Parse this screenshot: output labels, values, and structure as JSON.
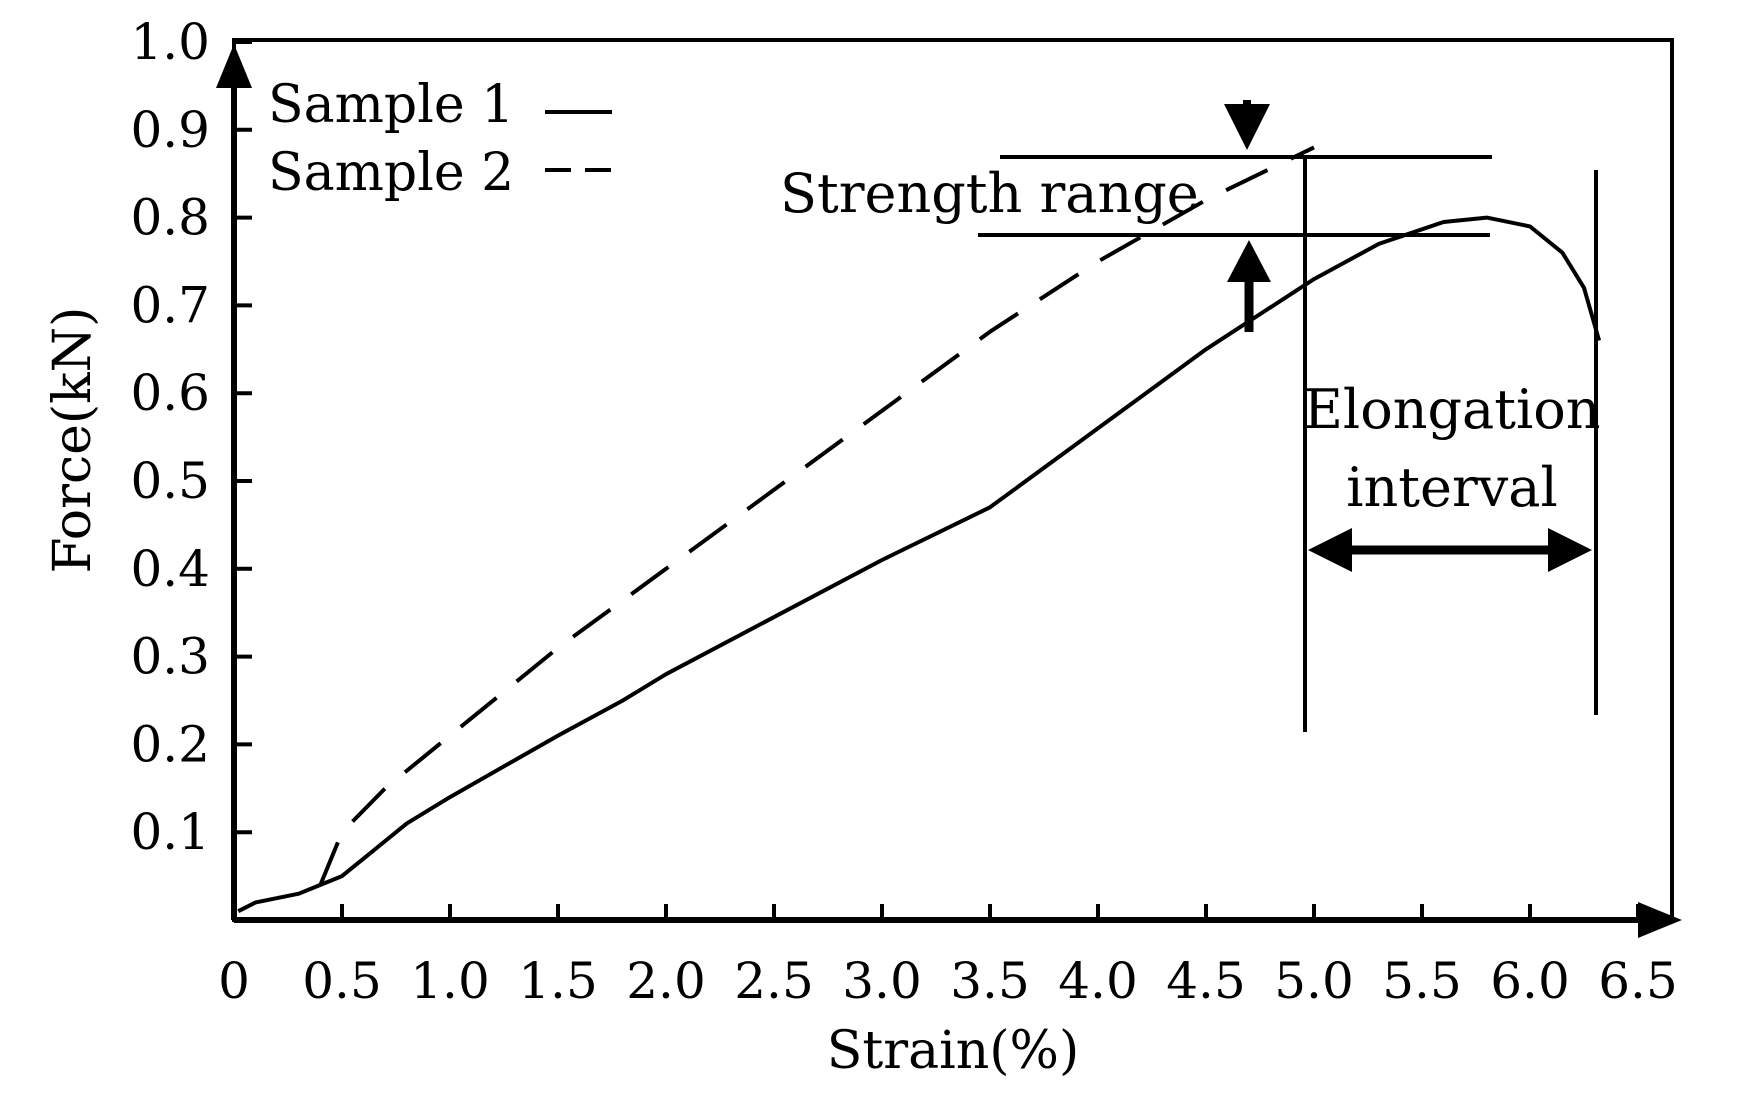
{
  "chart_data": {
    "type": "line",
    "title": "",
    "xlabel": "Strain(%)",
    "ylabel": "Force(kN)",
    "xlim": [
      0,
      6.6
    ],
    "ylim": [
      0,
      1.0
    ],
    "x_ticks": [
      0,
      0.5,
      1.0,
      1.5,
      2.0,
      2.5,
      3.0,
      3.5,
      4.0,
      4.5,
      5.0,
      5.5,
      6.0,
      6.5
    ],
    "x_tick_labels": [
      "0",
      "0.5",
      "1.0",
      "1.5",
      "2.0",
      "2.5",
      "3.0",
      "3.5",
      "4.0",
      "4.5",
      "5.0",
      "5.5",
      "6.0",
      "6.5"
    ],
    "y_ticks": [
      0.1,
      0.2,
      0.3,
      0.4,
      0.5,
      0.6,
      0.7,
      0.8,
      0.9,
      1.0
    ],
    "y_tick_labels": [
      "0.1",
      "0.2",
      "0.3",
      "0.4",
      "0.5",
      "0.6",
      "0.7",
      "0.8",
      "0.9",
      "1.0"
    ],
    "grid": false,
    "legend_position": "top-left",
    "series": [
      {
        "name": "Sample 1",
        "style": "solid",
        "x": [
          0.02,
          0.1,
          0.3,
          0.4,
          0.5,
          0.65,
          0.8,
          1.0,
          1.5,
          1.8,
          2.0,
          3.0,
          3.5,
          4.0,
          4.5,
          5.0,
          5.3,
          5.6,
          5.8,
          6.0,
          6.15,
          6.25,
          6.32
        ],
        "y": [
          0.01,
          0.02,
          0.03,
          0.04,
          0.05,
          0.08,
          0.11,
          0.14,
          0.21,
          0.25,
          0.28,
          0.41,
          0.47,
          0.56,
          0.65,
          0.73,
          0.77,
          0.795,
          0.8,
          0.79,
          0.76,
          0.72,
          0.66
        ]
      },
      {
        "name": "Sample 2",
        "style": "dashed",
        "x": [
          0.4,
          0.5,
          0.7,
          1.0,
          1.5,
          2.0,
          2.5,
          3.0,
          3.5,
          4.0,
          4.5,
          5.0
        ],
        "y": [
          0.04,
          0.1,
          0.15,
          0.21,
          0.31,
          0.4,
          0.49,
          0.58,
          0.67,
          0.75,
          0.82,
          0.88
        ]
      }
    ],
    "annotations": {
      "strength_range": "Strength range",
      "elongation_line1": "Elongation",
      "elongation_line2": "interval"
    }
  },
  "colors": {
    "ink": "#000000",
    "background": "#ffffff"
  }
}
